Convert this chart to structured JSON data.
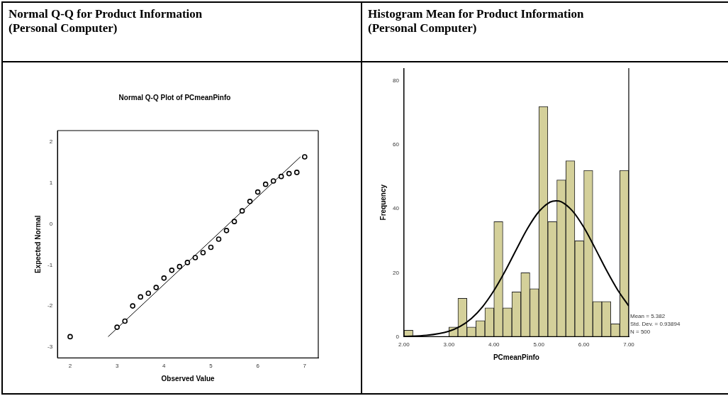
{
  "chart_data": [
    {
      "type": "scatter",
      "title": "Normal Q-Q for Product Information\n(Personal Computer)",
      "subtitle": "Normal Q-Q Plot of PCmeanPinfo",
      "xlabel": "Observed Value",
      "ylabel": "Expected Normal",
      "xlim": [
        1.73,
        7.29
      ],
      "ylim": [
        -3.27,
        2.28
      ],
      "xticks": [
        2,
        3,
        4,
        5,
        6,
        7
      ],
      "yticks": [
        -3,
        -2,
        -1,
        0,
        1,
        2
      ],
      "grid": false,
      "legend": false,
      "series": [
        {
          "type": "scatter",
          "marker": "circle",
          "color": "#000000",
          "x": [
            2,
            3,
            3.167,
            3.333,
            3.5,
            3.667,
            3.833,
            4,
            4.167,
            4.333,
            4.5,
            4.667,
            4.833,
            5,
            5.167,
            5.333,
            5.5,
            5.667,
            5.833,
            6,
            6.167,
            6.333,
            6.5,
            6.667,
            6.833,
            7
          ],
          "values": [
            -2.75,
            -2.52,
            -2.37,
            -2.0,
            -1.78,
            -1.69,
            -1.55,
            -1.32,
            -1.13,
            -1.04,
            -0.94,
            -0.82,
            -0.7,
            -0.57,
            -0.37,
            -0.16,
            0.06,
            0.32,
            0.55,
            0.78,
            0.97,
            1.05,
            1.16,
            1.23,
            1.26,
            1.64
          ]
        },
        {
          "type": "line",
          "marker": "none",
          "color": "#000000",
          "x": [
            2.81,
            6.91
          ],
          "values": [
            -2.75,
            1.64
          ]
        }
      ]
    },
    {
      "type": "histogram",
      "title": "Histogram Mean for Product Information\n(Personal Computer)",
      "xlabel": "PCmeanPinfo",
      "ylabel": "Frequency",
      "xlim": [
        2,
        7
      ],
      "ylim": [
        0,
        84
      ],
      "xticks": [
        {
          "value": 2,
          "label": "2.00"
        },
        {
          "value": 3,
          "label": "3.00"
        },
        {
          "value": 4,
          "label": "4.00"
        },
        {
          "value": 5,
          "label": "5.00"
        },
        {
          "value": 6,
          "label": "6.00"
        },
        {
          "value": 7,
          "label": "7.00"
        }
      ],
      "yticks": [
        0,
        20,
        40,
        60,
        80
      ],
      "grid": false,
      "legend": false,
      "annotations": [
        "Mean = 5.382",
        "Std. Dev. = 0.93894",
        "N = 500"
      ],
      "series": [
        {
          "type": "histogram",
          "color": "#d4d09a",
          "bins": [
            2,
            2.2,
            2.4,
            2.6,
            2.8,
            3,
            3.2,
            3.4,
            3.6,
            3.8,
            4,
            4.2,
            4.4,
            4.6,
            4.8,
            5,
            5.2,
            5.4,
            5.6,
            5.8,
            6,
            6.2,
            6.4,
            6.6,
            6.8,
            7
          ],
          "values": [
            2,
            0,
            0,
            0,
            0,
            3,
            12,
            3,
            5,
            9,
            36,
            9,
            14,
            20,
            15,
            72,
            36,
            49,
            55,
            30,
            52,
            11,
            11,
            4,
            52
          ]
        },
        {
          "type": "line",
          "color": "#000000",
          "x": [
            2,
            2.5,
            3,
            3.25,
            3.5,
            3.75,
            4,
            4.25,
            4.5,
            4.75,
            5,
            5.25,
            5.382,
            5.5,
            5.75,
            6,
            6.25,
            6.5,
            6.75,
            7
          ],
          "values": [
            0.1,
            0.4,
            1.7,
            3.2,
            5.7,
            9.4,
            14.4,
            20.5,
            27.3,
            33.9,
            39.1,
            42.1,
            42.5,
            42.2,
            39.3,
            34.2,
            27.7,
            20.9,
            14.7,
            9.6
          ]
        }
      ]
    }
  ]
}
